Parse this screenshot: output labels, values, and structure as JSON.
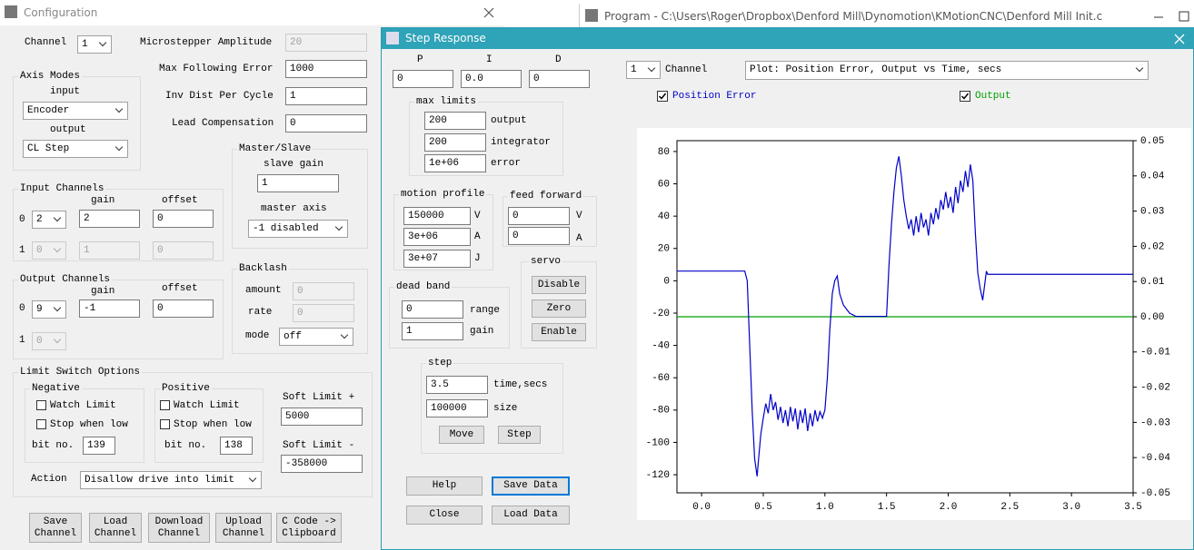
{
  "configuration": {
    "title": "Configuration",
    "channel_label": "Channel",
    "channel": "1",
    "microstepper_amplitude_label": "Microstepper Amplitude",
    "microstepper_amplitude": "20",
    "max_following_error_label": "Max Following Error",
    "max_following_error": "1000",
    "inv_dist_per_cycle_label": "Inv Dist Per Cycle",
    "inv_dist_per_cycle": "1",
    "lead_compensation_label": "Lead Compensation",
    "lead_compensation": "0",
    "axis_modes": {
      "title": "Axis Modes",
      "input_label": "input",
      "input": "Encoder",
      "output_label": "output",
      "output": "CL Step"
    },
    "master_slave": {
      "title": "Master/Slave",
      "slave_gain_label": "slave gain",
      "slave_gain": "1",
      "master_axis_label": "master axis",
      "master_axis": "-1 disabled"
    },
    "input_channels": {
      "title": "Input Channels",
      "gain_label": "gain",
      "offset_label": "offset",
      "rows": [
        {
          "index": "0",
          "channel": "2",
          "gain": "2",
          "offset": "0"
        },
        {
          "index": "1",
          "channel": "0",
          "gain": "1",
          "offset": "0"
        }
      ]
    },
    "output_channels": {
      "title": "Output Channels",
      "gain_label": "gain",
      "offset_label": "offset",
      "rows": [
        {
          "index": "0",
          "channel": "9",
          "gain": "-1",
          "offset": "0"
        },
        {
          "index": "1",
          "channel": "0"
        }
      ]
    },
    "backlash": {
      "title": "Backlash",
      "amount_label": "amount",
      "amount": "0",
      "rate_label": "rate",
      "rate": "0",
      "mode_label": "mode",
      "mode": "off"
    },
    "limit_switch": {
      "title": "Limit Switch Options",
      "negative": {
        "title": "Negative",
        "watch": "Watch Limit",
        "stop": "Stop when low",
        "bit_label": "bit no.",
        "bit": "139"
      },
      "positive": {
        "title": "Positive",
        "watch": "Watch Limit",
        "stop": "Stop when low",
        "bit_label": "bit no.",
        "bit": "138"
      },
      "soft_plus_label": "Soft Limit +",
      "soft_plus": "5000",
      "soft_minus_label": "Soft Limit -",
      "soft_minus": "-358000",
      "action_label": "Action",
      "action": "Disallow drive into limit"
    },
    "buttons": [
      "Save Channel",
      "Load Channel",
      "Download Channel",
      "Upload Channel",
      "C Code -> Clipboard"
    ]
  },
  "program_window": {
    "title": "Program - C:\\Users\\Roger\\Dropbox\\Denford Mill\\Dynomotion\\KMotionCNC\\Denford Mill Init.c"
  },
  "step_response": {
    "title": "Step Response",
    "pid": {
      "p_label": "P",
      "i_label": "I",
      "d_label": "D",
      "p": "0",
      "i": "0.0",
      "d": "0"
    },
    "max_limits": {
      "title": "max limits",
      "output": "200",
      "output_label": "output",
      "integrator": "200",
      "integrator_label": "integrator",
      "error": "1e+06",
      "error_label": "error"
    },
    "motion_profile": {
      "title": "motion profile",
      "v": "150000",
      "v_label": "V",
      "a": "3e+06",
      "a_label": "A",
      "j": "3e+07",
      "j_label": "J"
    },
    "feed_forward": {
      "title": "feed forward",
      "v": "0",
      "v_label": "V",
      "a": "0",
      "a_label": "A"
    },
    "dead_band": {
      "title": "dead band",
      "range": "0",
      "range_label": "range",
      "gain": "1",
      "gain_label": "gain"
    },
    "servo": {
      "title": "servo",
      "buttons": [
        "Disable",
        "Zero",
        "Enable"
      ]
    },
    "step": {
      "title": "step",
      "time": "3.5",
      "time_label": "time,secs",
      "size": "100000",
      "size_label": "size",
      "move": "Move",
      "step": "Step"
    },
    "buttons": [
      "Help",
      "Save Data",
      "Close",
      "Load Data"
    ],
    "channel": "1",
    "channel_label": "Channel",
    "plot": "Plot: Position Error, Output vs Time, secs"
  },
  "chart_data": {
    "type": "line",
    "series": [
      {
        "name": "Position Error",
        "color": "#0000c8",
        "x": [
          -0.2,
          0.35,
          0.37,
          0.39,
          0.41,
          0.43,
          0.45,
          0.46,
          0.48,
          0.5,
          0.52,
          0.54,
          0.56,
          0.58,
          0.6,
          0.62,
          0.64,
          0.66,
          0.68,
          0.7,
          0.72,
          0.74,
          0.76,
          0.78,
          0.8,
          0.82,
          0.84,
          0.86,
          0.88,
          0.9,
          0.92,
          0.94,
          0.96,
          0.98,
          1.0,
          1.02,
          1.04,
          1.06,
          1.08,
          1.1,
          1.12,
          1.15,
          1.2,
          1.25,
          1.5,
          1.52,
          1.54,
          1.56,
          1.58,
          1.6,
          1.62,
          1.64,
          1.66,
          1.68,
          1.7,
          1.72,
          1.74,
          1.76,
          1.78,
          1.8,
          1.82,
          1.84,
          1.86,
          1.88,
          1.9,
          1.92,
          1.94,
          1.96,
          1.98,
          2.0,
          2.02,
          2.04,
          2.06,
          2.08,
          2.1,
          2.12,
          2.14,
          2.16,
          2.18,
          2.2,
          2.22,
          2.24,
          2.26,
          2.28,
          2.3,
          2.31,
          2.32,
          3.5
        ],
        "values": [
          6,
          6,
          0,
          -40,
          -80,
          -110,
          -121,
          -112,
          -95,
          -85,
          -76,
          -82,
          -70,
          -80,
          -75,
          -86,
          -78,
          -88,
          -80,
          -90,
          -78,
          -87,
          -79,
          -92,
          -80,
          -88,
          -79,
          -93,
          -82,
          -90,
          -80,
          -87,
          -81,
          -85,
          -80,
          -60,
          -30,
          -8,
          0,
          3,
          -8,
          -15,
          -20,
          -22,
          -22,
          10,
          35,
          55,
          70,
          77,
          65,
          50,
          40,
          32,
          38,
          28,
          40,
          30,
          42,
          33,
          38,
          28,
          42,
          35,
          45,
          38,
          50,
          44,
          55,
          45,
          52,
          42,
          58,
          48,
          62,
          55,
          68,
          58,
          72,
          62,
          30,
          5,
          -5,
          -12,
          0,
          6,
          4,
          4
        ]
      },
      {
        "name": "Output",
        "color": "#00a000",
        "axis": "y2",
        "x": [
          -0.2,
          3.5
        ],
        "values": [
          0,
          0
        ]
      }
    ],
    "xlim": [
      -0.2,
      3.5
    ],
    "xticks": [
      {
        "value": 0,
        "label": "0.0"
      },
      0.5,
      {
        "value": 1,
        "label": "1.0"
      },
      1.5,
      {
        "value": 2,
        "label": "2.0"
      },
      2.5,
      {
        "value": 3,
        "label": "3.0"
      },
      3.5
    ],
    "ylim": [
      -131.2,
      86.7
    ],
    "yticks": [
      -120,
      -100,
      -80,
      -60,
      -40,
      -20,
      0,
      20,
      40,
      60,
      80
    ],
    "y2lim": [
      -0.05,
      0.05
    ],
    "y2ticks": [
      -0.05,
      -0.04,
      -0.03,
      -0.02,
      -0.01,
      {
        "value": 0,
        "label": "0.00"
      },
      0.01,
      0.02,
      0.03,
      0.04,
      0.05
    ]
  }
}
